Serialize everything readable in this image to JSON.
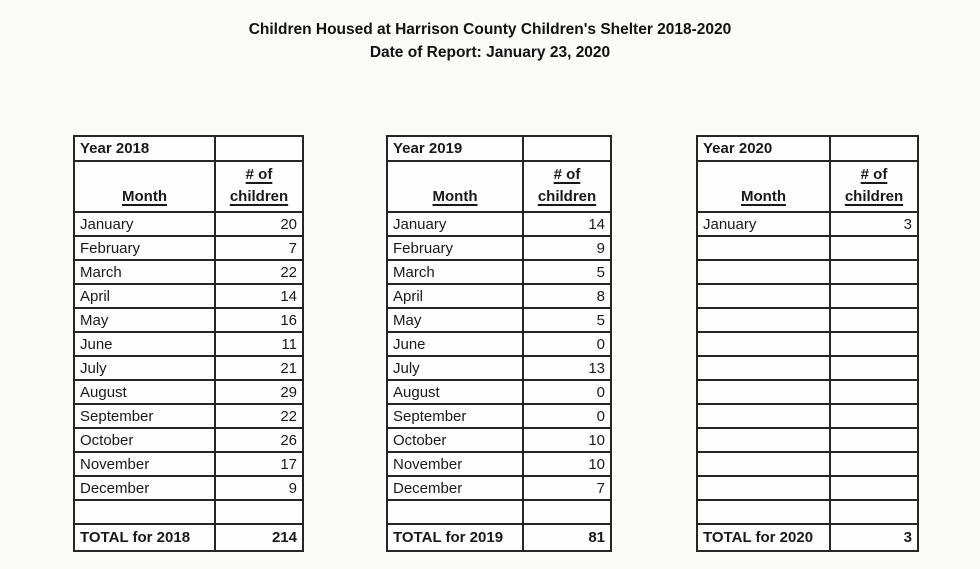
{
  "page": {
    "title": "Children Housed at Harrison County Children's Shelter 2018-2020",
    "subtitle": "Date of Report: January 23, 2020"
  },
  "columns": {
    "month_label": "Month",
    "children_label_line1": "# of",
    "children_label_line2": "children"
  },
  "tables": [
    {
      "year_label": "Year 2018",
      "rows": [
        {
          "month": "January",
          "children": "20"
        },
        {
          "month": "February",
          "children": "7"
        },
        {
          "month": "March",
          "children": "22"
        },
        {
          "month": "April",
          "children": "14"
        },
        {
          "month": "May",
          "children": "16"
        },
        {
          "month": "June",
          "children": "11"
        },
        {
          "month": "July",
          "children": "21"
        },
        {
          "month": "August",
          "children": "29"
        },
        {
          "month": "September",
          "children": "22"
        },
        {
          "month": "October",
          "children": "26"
        },
        {
          "month": "November",
          "children": "17"
        },
        {
          "month": "December",
          "children": "9"
        },
        {
          "month": "",
          "children": ""
        }
      ],
      "total_label": "TOTAL for 2018",
      "total_value": "214"
    },
    {
      "year_label": "Year 2019",
      "rows": [
        {
          "month": "January",
          "children": "14"
        },
        {
          "month": "February",
          "children": "9"
        },
        {
          "month": "March",
          "children": "5"
        },
        {
          "month": "April",
          "children": "8"
        },
        {
          "month": "May",
          "children": "5"
        },
        {
          "month": "June",
          "children": "0"
        },
        {
          "month": "July",
          "children": "13"
        },
        {
          "month": "August",
          "children": "0"
        },
        {
          "month": "September",
          "children": "0"
        },
        {
          "month": "October",
          "children": "10"
        },
        {
          "month": "November",
          "children": "10"
        },
        {
          "month": "December",
          "children": "7"
        },
        {
          "month": "",
          "children": ""
        }
      ],
      "total_label": "TOTAL for 2019",
      "total_value": "81"
    },
    {
      "year_label": "Year 2020",
      "rows": [
        {
          "month": "January",
          "children": "3"
        },
        {
          "month": "",
          "children": ""
        },
        {
          "month": "",
          "children": ""
        },
        {
          "month": "",
          "children": ""
        },
        {
          "month": "",
          "children": ""
        },
        {
          "month": "",
          "children": ""
        },
        {
          "month": "",
          "children": ""
        },
        {
          "month": "",
          "children": ""
        },
        {
          "month": "",
          "children": ""
        },
        {
          "month": "",
          "children": ""
        },
        {
          "month": "",
          "children": ""
        },
        {
          "month": "",
          "children": ""
        },
        {
          "month": "",
          "children": ""
        }
      ],
      "total_label": "TOTAL for 2020",
      "total_value": "3"
    }
  ],
  "colors": {
    "text": "#191919",
    "border": "#262626",
    "background": "#fbfbfa"
  }
}
